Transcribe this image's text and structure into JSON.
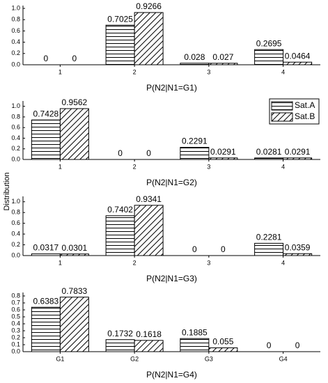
{
  "ylabel": "Distribution",
  "chart_data": [
    {
      "type": "bar",
      "xlabel": "P(N2|N1=G1)",
      "categories": [
        "1",
        "2",
        "3",
        "4"
      ],
      "ylim": [
        0,
        1.05
      ],
      "yticks": [
        {
          "value": 0,
          "label": "0.0"
        },
        0.2,
        0.4,
        0.6,
        0.8,
        {
          "value": 1,
          "label": "1.0"
        }
      ],
      "series": [
        {
          "pattern": "horizontal",
          "color": "#000000",
          "values": [
            0,
            0.7025,
            0.028,
            0.2695
          ]
        },
        {
          "pattern": "diagonal",
          "color": "#000000",
          "values": [
            0,
            0.9266,
            0.027,
            0.0464
          ]
        }
      ]
    },
    {
      "type": "bar",
      "xlabel": "P(N2|N1=G2)",
      "categories": [
        "1",
        "2",
        "3",
        "4"
      ],
      "ylim": [
        0,
        1.1
      ],
      "yticks": [
        {
          "value": 0,
          "label": "0.0"
        },
        0.2,
        0.4,
        0.6,
        0.8,
        {
          "value": 1,
          "label": "1.0"
        }
      ],
      "legend": "upper right",
      "series": [
        {
          "name": "Sat.A",
          "pattern": "horizontal",
          "color": "#000000",
          "values": [
            0.7428,
            0,
            0.2291,
            0.0281
          ]
        },
        {
          "name": "Sat.B",
          "pattern": "diagonal",
          "color": "#000000",
          "values": [
            0.9562,
            0,
            0.0291,
            0.0291
          ]
        }
      ]
    },
    {
      "type": "bar",
      "xlabel": "P(N2|N1=G3)",
      "categories": [
        "1",
        "2",
        "3",
        "4"
      ],
      "ylim": [
        0,
        1.1
      ],
      "yticks": [
        {
          "value": 0,
          "label": "0.0"
        },
        0.2,
        0.4,
        0.6,
        0.8,
        {
          "value": 1,
          "label": "1.0"
        }
      ],
      "series": [
        {
          "pattern": "horizontal",
          "color": "#000000",
          "values": [
            0.0317,
            0.7402,
            0,
            0.2281
          ]
        },
        {
          "pattern": "diagonal",
          "color": "#000000",
          "values": [
            0.0301,
            0.9341,
            0,
            0.0359
          ]
        }
      ]
    },
    {
      "type": "bar",
      "xlabel": "P(N2|N1=G4)",
      "categories": [
        "G1",
        "G2",
        "G3",
        "G4"
      ],
      "ylim": [
        0,
        0.85
      ],
      "yticks": [
        {
          "value": 0,
          "label": "0.0"
        },
        0.1,
        0.2,
        0.3,
        0.4,
        0.5,
        0.6,
        0.7,
        0.8
      ],
      "series": [
        {
          "pattern": "horizontal",
          "color": "#000000",
          "values": [
            0.6383,
            0.1732,
            0.1885,
            0
          ]
        },
        {
          "pattern": "diagonal",
          "color": "#000000",
          "values": [
            0.7833,
            0.1618,
            0.055,
            0
          ]
        }
      ]
    }
  ]
}
